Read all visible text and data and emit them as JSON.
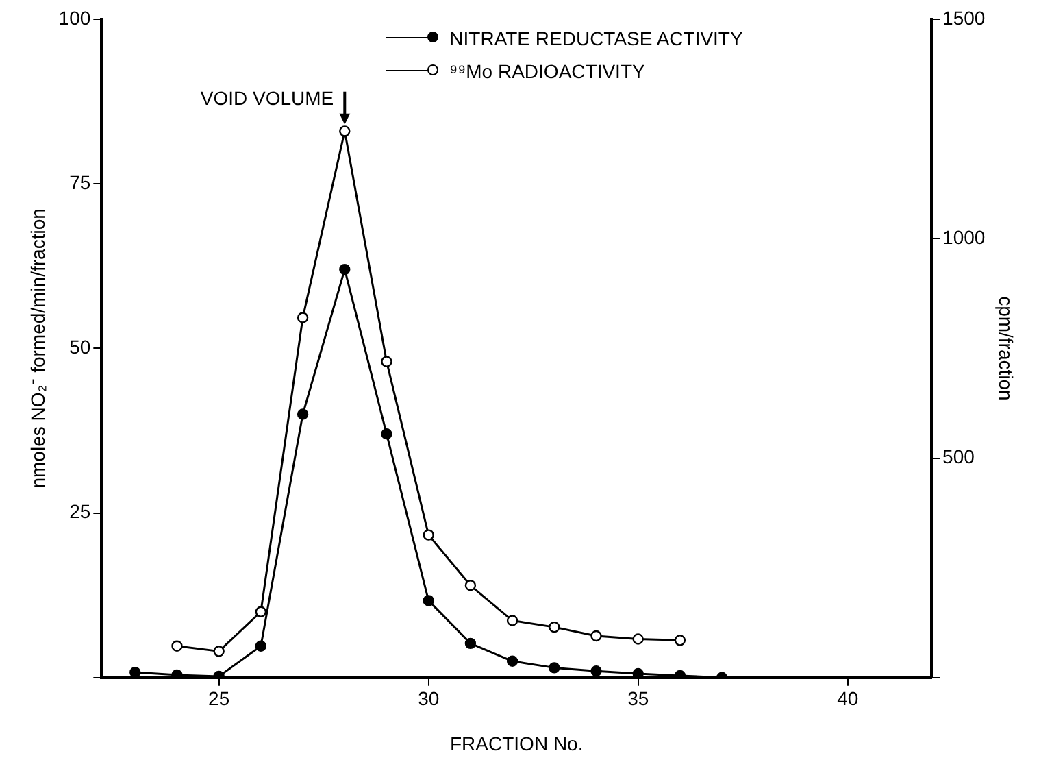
{
  "chart_data": {
    "type": "line",
    "xlabel": "FRACTION No.",
    "ylabel": "nmoles NO₂⁻ formed/min/fraction",
    "y2label": "cpm/fraction",
    "xlim": [
      22.2,
      42
    ],
    "xticks": [
      25,
      30,
      35,
      40
    ],
    "ylim": [
      0,
      100
    ],
    "yticks": [
      {
        "value": 0,
        "label": null
      },
      25,
      50,
      75,
      100
    ],
    "y2lim": [
      0,
      1500
    ],
    "y2ticks": [
      {
        "value": 0,
        "label": null
      },
      500,
      1000,
      1500
    ],
    "series": [
      {
        "name": "NITRATE REDUCTASE ACTIVITY",
        "color": "#000000",
        "x": [
          23,
          24,
          25,
          26,
          27,
          28,
          29,
          30,
          31,
          32,
          33,
          34,
          35,
          36,
          37
        ],
        "values": [
          0.8,
          0.4,
          0.2,
          4.8,
          40,
          62,
          37,
          11.7,
          5.2,
          2.5,
          1.5,
          1,
          0.6,
          0.3,
          0
        ]
      },
      {
        "name": "⁹⁹Mo RADIOACTIVITY",
        "color": "#000000",
        "axis": "y2",
        "x": [
          24,
          25,
          26,
          27,
          28,
          29,
          30,
          31,
          32,
          33,
          34,
          35,
          36
        ],
        "values": [
          72,
          60,
          150,
          820,
          1245,
          720,
          325,
          210,
          130,
          115,
          95,
          88,
          85
        ]
      }
    ],
    "annotations": [
      {
        "text": "VOID VOLUME",
        "x": 28,
        "y": 84
      }
    ],
    "marker": "circle",
    "line_style": "solid",
    "grid": false,
    "legend": "top"
  }
}
